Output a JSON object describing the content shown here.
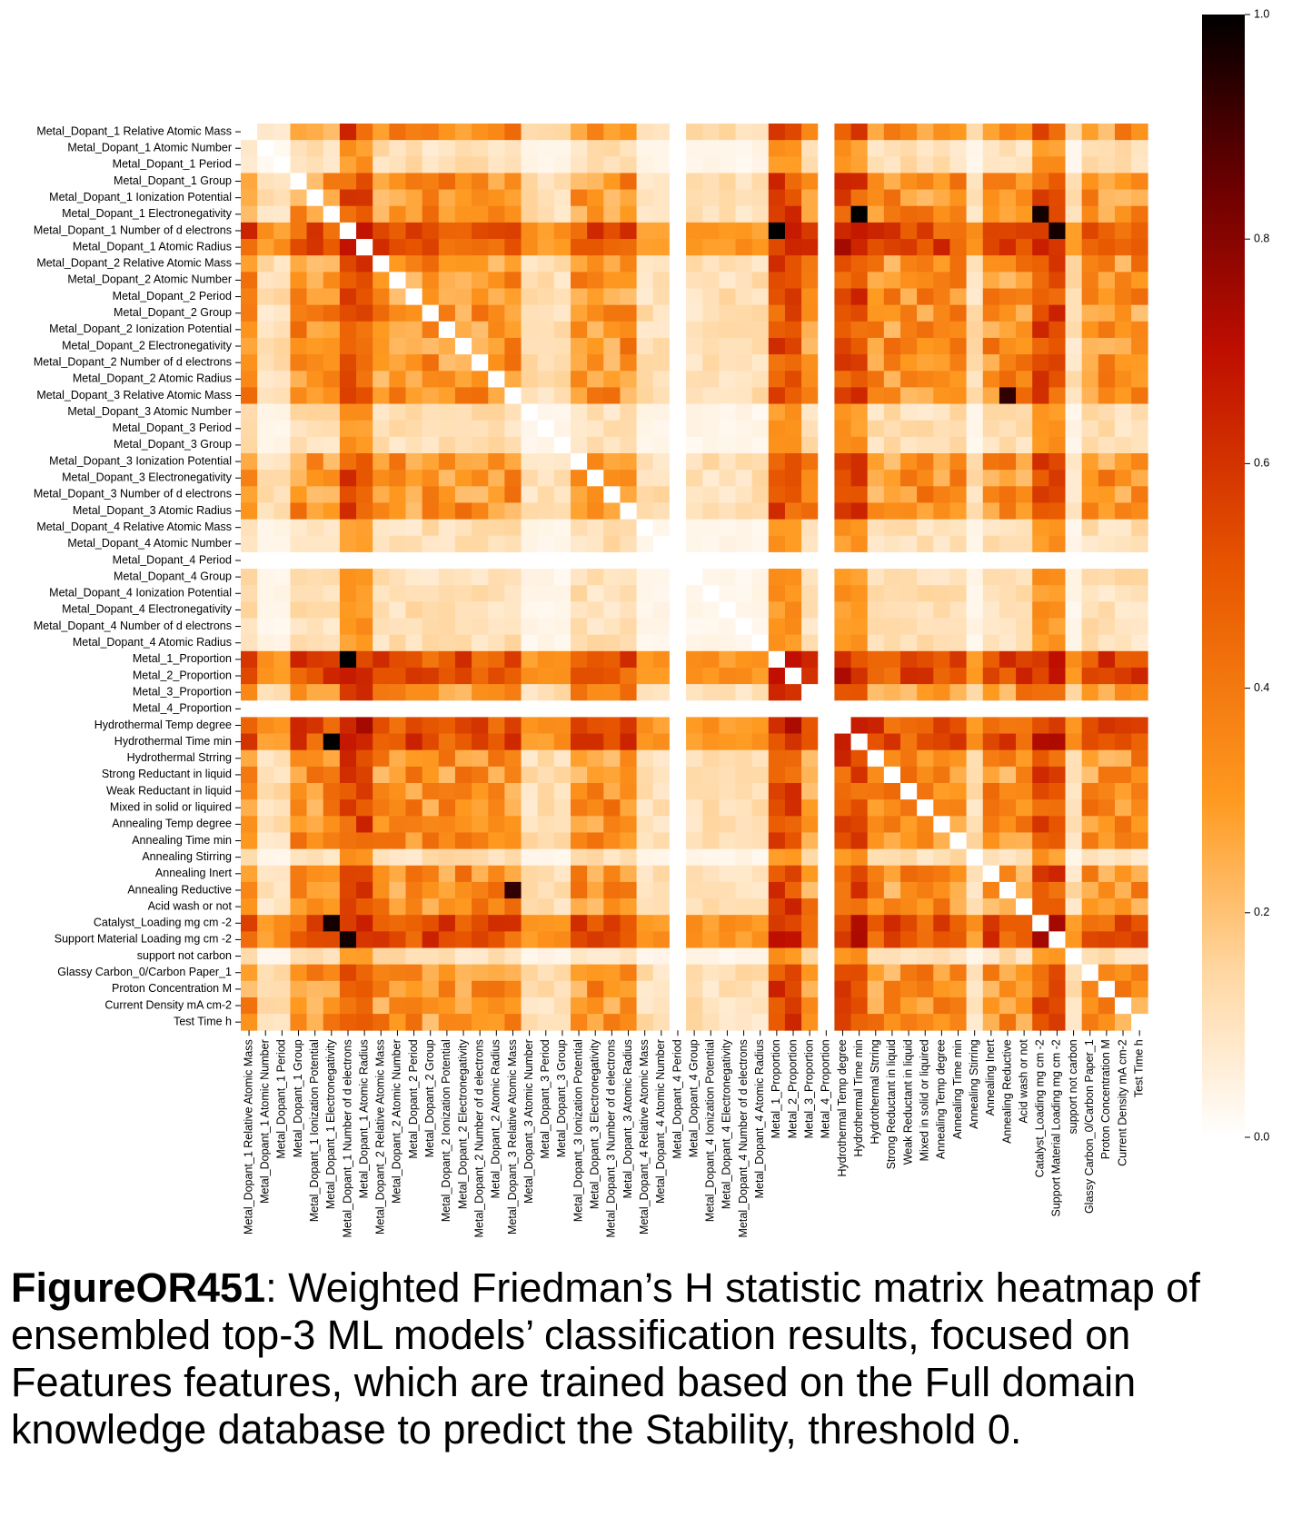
{
  "chart_data": {
    "type": "heatmap",
    "title": "",
    "xlabel": "",
    "ylabel": "",
    "features": [
      "Metal_Dopant_1 Relative Atomic Mass",
      "Metal_Dopant_1 Atomic Number",
      "Metal_Dopant_1 Period",
      "Metal_Dopant_1 Group",
      "Metal_Dopant_1 Ionization Potential",
      "Metal_Dopant_1 Electronegativity",
      "Metal_Dopant_1 Number of d electrons",
      "Metal_Dopant_1 Atomic Radius",
      "Metal_Dopant_2 Relative Atomic Mass",
      "Metal_Dopant_2 Atomic Number",
      "Metal_Dopant_2 Period",
      "Metal_Dopant_2 Group",
      "Metal_Dopant_2 Ionization Potential",
      "Metal_Dopant_2 Electronegativity",
      "Metal_Dopant_2 Number of d electrons",
      "Metal_Dopant_2 Atomic Radius",
      "Metal_Dopant_3 Relative Atomic Mass",
      "Metal_Dopant_3 Atomic Number",
      "Metal_Dopant_3 Period",
      "Metal_Dopant_3 Group",
      "Metal_Dopant_3 Ionization Potential",
      "Metal_Dopant_3 Electronegativity",
      "Metal_Dopant_3 Number of d electrons",
      "Metal_Dopant_3 Atomic Radius",
      "Metal_Dopant_4 Relative Atomic Mass",
      "Metal_Dopant_4 Atomic Number",
      "Metal_Dopant_4 Period",
      "Metal_Dopant_4 Group",
      "Metal_Dopant_4 Ionization Potential",
      "Metal_Dopant_4 Electronegativity",
      "Metal_Dopant_4 Number of d electrons",
      "Metal_Dopant_4 Atomic Radius",
      "Metal_1_Proportion",
      "Metal_2_Proportion",
      "Metal_3_Proportion",
      "Metal_4_Proportion",
      "Hydrothermal Temp degree",
      "Hydrothermal Time min",
      "Hydrothermal Strring",
      "Strong Reductant in liquid",
      "Weak Reductant in liquid",
      "Mixed in solid or liquired",
      "Annealing Temp degree",
      "Annealing Time min",
      "Annealing Stirring",
      "Annealing Inert",
      "Annealing Reductive",
      "Acid wash or not",
      "Catalyst_Loading mg cm -2",
      "Support Material Loading mg cm -2",
      "support not carbon",
      "Glassy Carbon_0/Carbon Paper_1",
      "Proton Concentration M",
      "Current Density mA cm-2",
      "Test Time h"
    ],
    "color_range": [
      0.0,
      1.0
    ],
    "colormap": "gist_heat_r",
    "colorbar_ticks": [
      "0.0",
      "0.2",
      "0.4",
      "0.6",
      "0.8",
      "1.0"
    ],
    "matrix_note_values": {
      "max_value": 1.0,
      "min_value": 0.0,
      "empty_rows": [
        "Metal_Dopant_4 Period",
        "Metal_4_Proportion"
      ],
      "near_max_cells": [
        [
          "Metal_1_Proportion",
          "Metal_Dopant_1 Number of d electrons",
          1.0
        ],
        [
          "Metal_Dopant_1 Number of d electrons",
          "Metal_1_Proportion",
          1.0
        ],
        [
          "Hydrothermal Time min",
          "Metal_Dopant_1 Electronegativity",
          1.0
        ],
        [
          "Metal_Dopant_1 Electronegativity",
          "Hydrothermal Time min",
          1.0
        ],
        [
          "Catalyst_Loading mg cm -2",
          "Metal_Dopant_1 Electronegativity",
          0.97
        ],
        [
          "Support Material Loading mg cm -2",
          "Metal_Dopant_1 Number of d electrons",
          0.97
        ],
        [
          "Annealing Reductive",
          "Metal_Dopant_3 Relative Atomic Mass",
          0.93
        ],
        [
          "Metal_Dopant_3 Relative Atomic Mass",
          "Annealing Reductive",
          0.93
        ]
      ]
    }
  },
  "caption": {
    "figure_id": "FigureOR451",
    "text": ": Weighted Friedman’s H statistic matrix heatmap of ensembled top-3 ML models’ classification results, focused on Features features, which are trained based on the Full domain knowledge database to predict the Stability, threshold 0."
  }
}
